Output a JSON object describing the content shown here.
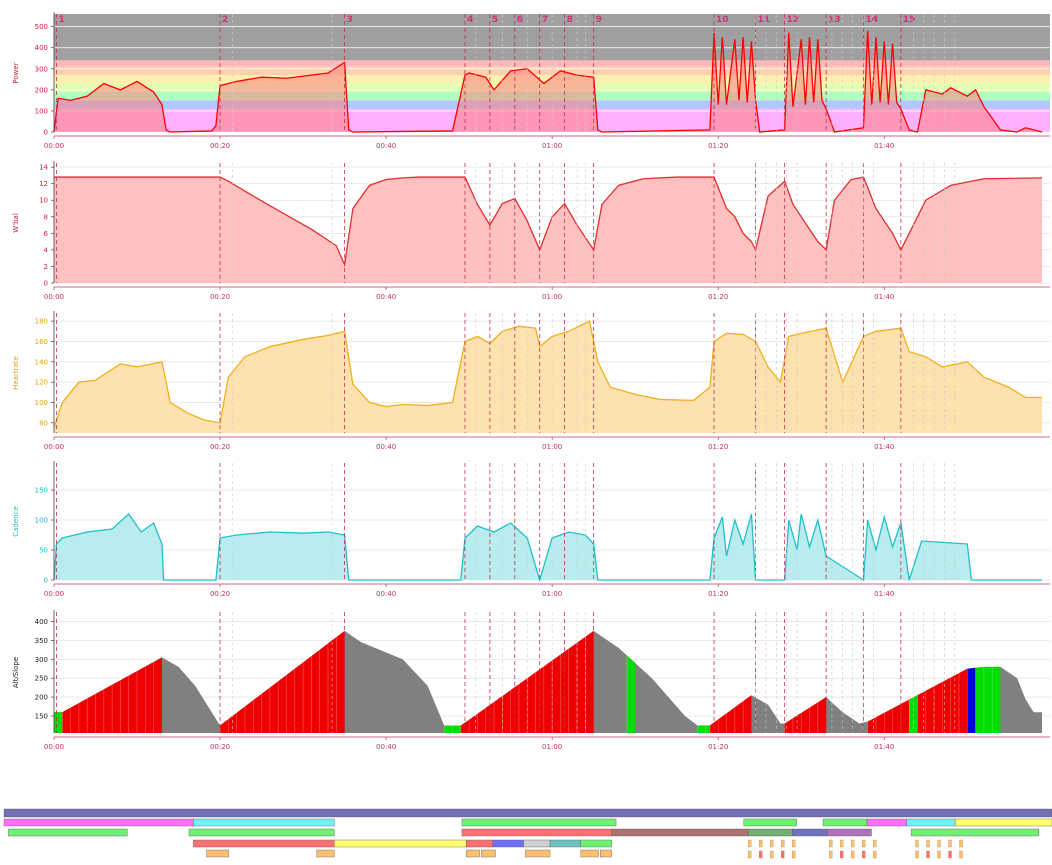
{
  "colors": {
    "power": "#ff0000",
    "power_fill": "#ff8080",
    "wbal": "#e03030",
    "wbal_fill": "#ffc0c0",
    "heartrate": "#f0b020",
    "heartrate_fill": "#fde2b0",
    "cadence": "#20c0c8",
    "cadence_fill": "#b8ecee",
    "altitude_fill": "#808080",
    "slope_red": "#ee0000",
    "slope_green": "#00dd00",
    "slope_blue": "#0000dd",
    "marker": "#c03050",
    "axis": "#c0306a"
  },
  "chart_data": [
    {
      "type": "area",
      "ylabel": "Power",
      "yticks": [
        "0",
        "100",
        "200",
        "300",
        "400",
        "500"
      ],
      "ylim": [
        0,
        560
      ],
      "xlim_minutes": [
        0,
        119
      ],
      "xticks": [
        "00:00",
        "00:20",
        "00:40",
        "01:00",
        "01:20",
        "01:40"
      ],
      "zones": [
        {
          "from": 0,
          "to": 110,
          "color": "#ffb0ff"
        },
        {
          "from": 110,
          "to": 150,
          "color": "#b0c8ff"
        },
        {
          "from": 150,
          "to": 190,
          "color": "#b0ffc0"
        },
        {
          "from": 190,
          "to": 230,
          "color": "#e0ffb0"
        },
        {
          "from": 230,
          "to": 270,
          "color": "#fff0b0"
        },
        {
          "from": 270,
          "to": 310,
          "color": "#ffd0b0"
        },
        {
          "from": 310,
          "to": 340,
          "color": "#ffb8b8"
        },
        {
          "from": 340,
          "to": 560,
          "color": "#a0a0a0"
        }
      ],
      "markers": [
        {
          "t": 0.3,
          "label": "1"
        },
        {
          "t": 20,
          "label": "2"
        },
        {
          "t": 35,
          "label": "3"
        },
        {
          "t": 49.5,
          "label": "4"
        },
        {
          "t": 52.5,
          "label": "5"
        },
        {
          "t": 55.5,
          "label": "6"
        },
        {
          "t": 58.5,
          "label": "7"
        },
        {
          "t": 61.5,
          "label": "8"
        },
        {
          "t": 65,
          "label": "9"
        },
        {
          "t": 79.5,
          "label": "10"
        },
        {
          "t": 84.5,
          "label": "11"
        },
        {
          "t": 88,
          "label": "12"
        },
        {
          "t": 93,
          "label": "13"
        },
        {
          "t": 97.5,
          "label": "14"
        },
        {
          "t": 102,
          "label": "15"
        }
      ],
      "series": [
        {
          "t": [
            0,
            0.5,
            2,
            4,
            6,
            8,
            10,
            12,
            13,
            13.5,
            14,
            19,
            19.5,
            20,
            22,
            25,
            28,
            31,
            33,
            35,
            35.5,
            36,
            48,
            49.5,
            50,
            52,
            53,
            55,
            57,
            59,
            61,
            63,
            65,
            65.5,
            66,
            79,
            79.5,
            80,
            80.5,
            81,
            82,
            82.5,
            83,
            83.5,
            84,
            84.5,
            85,
            88,
            88.5,
            89,
            90,
            90.5,
            91,
            91.5,
            92,
            92.5,
            93,
            94,
            97.5,
            98,
            98.5,
            99,
            99.5,
            100,
            100.5,
            101,
            101.5,
            102,
            103,
            104,
            105,
            107,
            108,
            110,
            111,
            112,
            114,
            116,
            117,
            119
          ],
          "values": [
            0,
            160,
            150,
            170,
            230,
            200,
            240,
            190,
            130,
            10,
            0,
            5,
            30,
            220,
            240,
            260,
            255,
            270,
            280,
            330,
            10,
            0,
            5,
            270,
            280,
            260,
            200,
            290,
            300,
            230,
            290,
            270,
            260,
            10,
            0,
            10,
            470,
            130,
            450,
            130,
            440,
            150,
            450,
            140,
            430,
            150,
            0,
            10,
            470,
            120,
            440,
            130,
            450,
            140,
            440,
            150,
            110,
            0,
            20,
            480,
            130,
            450,
            140,
            430,
            130,
            420,
            140,
            110,
            10,
            0,
            200,
            180,
            210,
            170,
            200,
            120,
            10,
            0,
            20,
            0
          ]
        }
      ]
    },
    {
      "type": "area",
      "ylabel": "W'bal",
      "yticks": [
        "0",
        "2",
        "4",
        "6",
        "8",
        "10",
        "12",
        "14"
      ],
      "ylim": [
        0,
        14.5
      ],
      "xlim_minutes": [
        0,
        119
      ],
      "xticks": [
        "00:00",
        "00:20",
        "00:40",
        "01:00",
        "01:20",
        "01:40"
      ],
      "series": [
        {
          "t": [
            0,
            20,
            21,
            24,
            28,
            31,
            34,
            35,
            36,
            38,
            40,
            42,
            44,
            49.5,
            51,
            52.5,
            54,
            55.5,
            57,
            58.5,
            60,
            61.5,
            63,
            65,
            66,
            68,
            71,
            75,
            79.5,
            81,
            82,
            83,
            84,
            84.5,
            86,
            88,
            89,
            90,
            91,
            92,
            93,
            94,
            96,
            97.5,
            99,
            100,
            101,
            102,
            103,
            105,
            108,
            112,
            119
          ],
          "values": [
            12.8,
            12.8,
            12.3,
            10.5,
            8.2,
            6.5,
            4.5,
            2.2,
            9,
            11.8,
            12.5,
            12.7,
            12.8,
            12.8,
            9.5,
            7,
            9.6,
            10.2,
            7.5,
            4,
            8,
            9.6,
            7,
            4,
            9.5,
            11.8,
            12.6,
            12.8,
            12.8,
            9,
            8,
            6,
            5,
            4,
            10.5,
            12.3,
            9.5,
            8,
            6.5,
            5,
            4,
            10,
            12.5,
            12.8,
            9,
            7.5,
            6,
            4,
            6,
            10,
            11.8,
            12.6,
            12.7
          ]
        }
      ]
    },
    {
      "type": "area",
      "ylabel": "Heartrate",
      "yticks": [
        "80",
        "100",
        "120",
        "140",
        "160",
        "180"
      ],
      "ylim": [
        70,
        188
      ],
      "xlim_minutes": [
        0,
        119
      ],
      "xticks": [
        "00:00",
        "00:20",
        "00:40",
        "01:00",
        "01:20",
        "01:40"
      ],
      "series": [
        {
          "t": [
            0,
            1,
            3,
            5,
            8,
            10,
            13,
            14,
            16,
            18,
            20,
            21,
            23,
            26,
            30,
            33,
            35,
            36,
            38,
            40,
            42,
            45,
            48,
            49.5,
            51,
            52.5,
            54,
            56,
            58,
            58.5,
            60,
            62,
            64.5,
            65.5,
            67,
            70,
            73,
            77,
            79,
            79.5,
            81,
            83,
            84.5,
            86,
            87.5,
            88.5,
            90,
            93,
            95,
            97.5,
            99,
            102,
            103,
            105,
            107,
            110,
            112,
            115,
            117,
            119
          ],
          "values": [
            75,
            100,
            120,
            122,
            138,
            135,
            140,
            100,
            90,
            83,
            80,
            125,
            145,
            155,
            162,
            166,
            170,
            118,
            100,
            96,
            98,
            97,
            100,
            160,
            165,
            158,
            170,
            175,
            173,
            155,
            165,
            170,
            180,
            140,
            115,
            108,
            103,
            102,
            115,
            160,
            168,
            167,
            160,
            135,
            120,
            165,
            168,
            173,
            120,
            165,
            170,
            173,
            150,
            145,
            135,
            140,
            125,
            115,
            105,
            105
          ]
        }
      ]
    },
    {
      "type": "area",
      "ylabel": "Cadence",
      "yticks": [
        "0",
        "50",
        "100",
        "150"
      ],
      "ylim": [
        0,
        195
      ],
      "xlim_minutes": [
        0,
        119
      ],
      "xticks": [
        "00:00",
        "00:20",
        "00:40",
        "01:00",
        "01:20",
        "01:40"
      ],
      "series": [
        {
          "t": [
            0,
            0.3,
            1,
            4,
            7,
            9,
            10.5,
            12,
            13,
            13.2,
            19.5,
            20,
            22,
            26,
            30,
            33,
            35,
            35.5,
            49,
            49.5,
            51,
            53,
            55,
            57,
            58.5,
            60,
            62,
            64,
            65,
            65.5,
            79,
            79.5,
            80.5,
            81,
            82,
            83,
            84,
            84.5,
            88,
            88.5,
            89.5,
            90,
            91,
            92,
            93,
            97.5,
            98,
            99,
            100,
            101,
            102,
            103,
            104.5,
            110,
            110.5,
            119
          ],
          "values": [
            0,
            60,
            70,
            80,
            85,
            110,
            80,
            95,
            60,
            0,
            0,
            70,
            75,
            80,
            78,
            80,
            75,
            0,
            0,
            70,
            90,
            80,
            95,
            70,
            0,
            70,
            80,
            75,
            60,
            0,
            0,
            70,
            105,
            40,
            100,
            60,
            110,
            0,
            0,
            100,
            50,
            110,
            55,
            100,
            40,
            0,
            100,
            50,
            105,
            55,
            95,
            0,
            65,
            60,
            0,
            0
          ]
        }
      ]
    },
    {
      "type": "area",
      "ylabel": "Alt/Slope",
      "yticks": [
        "150",
        "200",
        "250",
        "300",
        "350",
        "400"
      ],
      "ylim": [
        105,
        425
      ],
      "xlim_minutes": [
        0,
        119
      ],
      "xticks": [
        "00:00",
        "00:20",
        "00:40",
        "01:00",
        "01:20",
        "01:40"
      ],
      "series": [
        {
          "t": [
            0,
            1,
            13,
            15,
            17,
            19,
            20,
            35,
            37,
            42,
            45,
            47,
            49,
            50,
            65,
            68,
            72,
            76,
            77.5,
            79,
            84,
            86,
            87.5,
            88,
            93,
            95,
            97,
            98,
            110,
            112,
            114,
            116,
            117,
            118,
            119
          ],
          "values": [
            160,
            160,
            305,
            280,
            230,
            160,
            125,
            375,
            345,
            300,
            230,
            125,
            125,
            140,
            375,
            330,
            250,
            150,
            125,
            125,
            205,
            180,
            130,
            130,
            200,
            160,
            130,
            135,
            275,
            280,
            280,
            250,
            195,
            160,
            160
          ]
        }
      ],
      "slope_segments": [
        {
          "from": 0,
          "to": 1,
          "color": "green"
        },
        {
          "from": 1,
          "to": 13,
          "color": "red"
        },
        {
          "from": 20,
          "to": 35,
          "color": "red"
        },
        {
          "from": 47,
          "to": 49,
          "color": "green"
        },
        {
          "from": 49,
          "to": 65,
          "color": "red"
        },
        {
          "from": 69,
          "to": 70,
          "color": "green"
        },
        {
          "from": 77.5,
          "to": 79,
          "color": "green"
        },
        {
          "from": 79,
          "to": 84,
          "color": "red"
        },
        {
          "from": 88,
          "to": 93,
          "color": "red"
        },
        {
          "from": 98,
          "to": 103,
          "color": "red"
        },
        {
          "from": 103,
          "to": 104,
          "color": "green"
        },
        {
          "from": 104,
          "to": 110,
          "color": "red"
        },
        {
          "from": 110,
          "to": 111,
          "color": "blue"
        },
        {
          "from": 111,
          "to": 114,
          "color": "green"
        }
      ]
    }
  ],
  "timeline": {
    "rows": [
      [
        {
          "from": 0,
          "to": 119,
          "color": "#7070b8"
        }
      ],
      [
        {
          "from": 0,
          "to": 21.5,
          "color": "#ff70ff"
        },
        {
          "from": 21.5,
          "to": 37.5,
          "color": "#70f0ff"
        },
        {
          "from": 52,
          "to": 69.5,
          "color": "#70f070"
        },
        {
          "from": 84,
          "to": 90,
          "color": "#70f070"
        },
        {
          "from": 93,
          "to": 98,
          "color": "#70f070"
        },
        {
          "from": 98,
          "to": 102.5,
          "color": "#ff70ff"
        },
        {
          "from": 102.5,
          "to": 108,
          "color": "#70f0ff"
        },
        {
          "from": 108,
          "to": 119,
          "color": "#ffff70"
        }
      ],
      [
        {
          "from": 0.5,
          "to": 14,
          "color": "#70f070"
        },
        {
          "from": 21,
          "to": 37.5,
          "color": "#70f070"
        },
        {
          "from": 52,
          "to": 69,
          "color": "#ff7070"
        },
        {
          "from": 69,
          "to": 84.5,
          "color": "#b07070"
        },
        {
          "from": 84.5,
          "to": 89.5,
          "color": "#70b070"
        },
        {
          "from": 89.5,
          "to": 93.5,
          "color": "#7070c0"
        },
        {
          "from": 93.5,
          "to": 98.5,
          "color": "#b070c0"
        },
        {
          "from": 103,
          "to": 117.5,
          "color": "#70f070"
        }
      ],
      [
        {
          "from": 21.5,
          "to": 37.5,
          "color": "#ff7070"
        },
        {
          "from": 37.5,
          "to": 52.5,
          "color": "#ffff70"
        },
        {
          "from": 52.5,
          "to": 55.5,
          "color": "#ff7070"
        },
        {
          "from": 55.5,
          "to": 59,
          "color": "#7070ff"
        },
        {
          "from": 59,
          "to": 62,
          "color": "#d0d0d0"
        },
        {
          "from": 62,
          "to": 65.5,
          "color": "#70c0c0"
        },
        {
          "from": 65.5,
          "to": 69,
          "color": "#70f070"
        }
      ],
      [
        {
          "from": 23,
          "to": 25.5,
          "color": "#ffc070"
        },
        {
          "from": 35.5,
          "to": 37.5,
          "color": "#ffc070"
        },
        {
          "from": 52.5,
          "to": 54,
          "color": "#ffc070"
        },
        {
          "from": 54.2,
          "to": 55.8,
          "color": "#ffc070"
        },
        {
          "from": 59.2,
          "to": 62,
          "color": "#ffc070"
        },
        {
          "from": 65.5,
          "to": 67.5,
          "color": "#ffc070"
        },
        {
          "from": 67.7,
          "to": 69,
          "color": "#ffc070"
        }
      ]
    ],
    "tick_groups": [
      {
        "from": 84.5,
        "to": 89.5,
        "count": 5
      },
      {
        "from": 93.7,
        "to": 98.7,
        "count": 5
      },
      {
        "from": 103.5,
        "to": 108.5,
        "count": 5
      }
    ]
  }
}
